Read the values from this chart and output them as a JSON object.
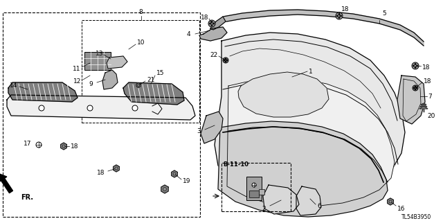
{
  "fig_width": 6.4,
  "fig_height": 3.19,
  "dpi": 100,
  "bg_color": "#ffffff",
  "lc": "#000000",
  "diagram_id": "TL54B3950",
  "main_panel_color": "#e0e0e0",
  "strip_color": "#c8c8c8",
  "dark_gray": "#a0a0a0",
  "mid_gray": "#b8b8b8"
}
